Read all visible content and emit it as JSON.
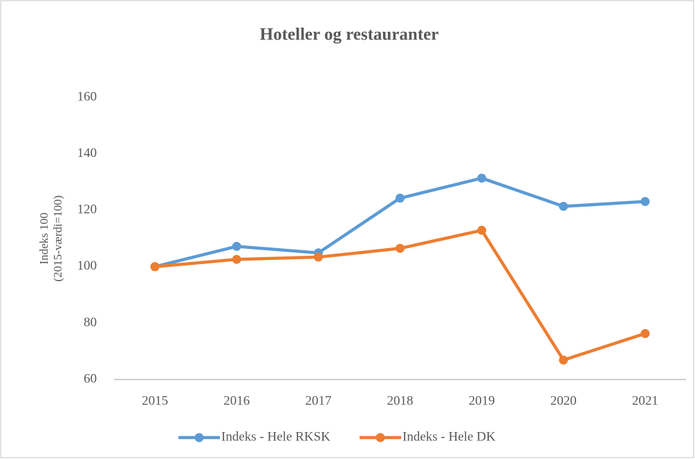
{
  "chart_data": {
    "type": "line",
    "title": "Hoteller og restauranter",
    "ylabel": [
      "Indeks 100",
      "(2015-værdi=100)"
    ],
    "categories": [
      "2015",
      "2016",
      "2017",
      "2018",
      "2019",
      "2020",
      "2021"
    ],
    "series": [
      {
        "name": "Indeks - Hele RKSK",
        "color": "#5b9bd5",
        "values": [
          100,
          107.2,
          104.9,
          124.3,
          131.4,
          121.4,
          123.1
        ]
      },
      {
        "name": "Indeks - Hele DK",
        "color": "#ed7d31",
        "values": [
          100,
          102.6,
          103.4,
          106.5,
          112.9,
          66.9,
          76.3
        ]
      }
    ],
    "ylim": [
      60,
      160
    ],
    "yticks": [
      60,
      80,
      100,
      120,
      140,
      160
    ],
    "grid": false,
    "legend": "bottom"
  }
}
